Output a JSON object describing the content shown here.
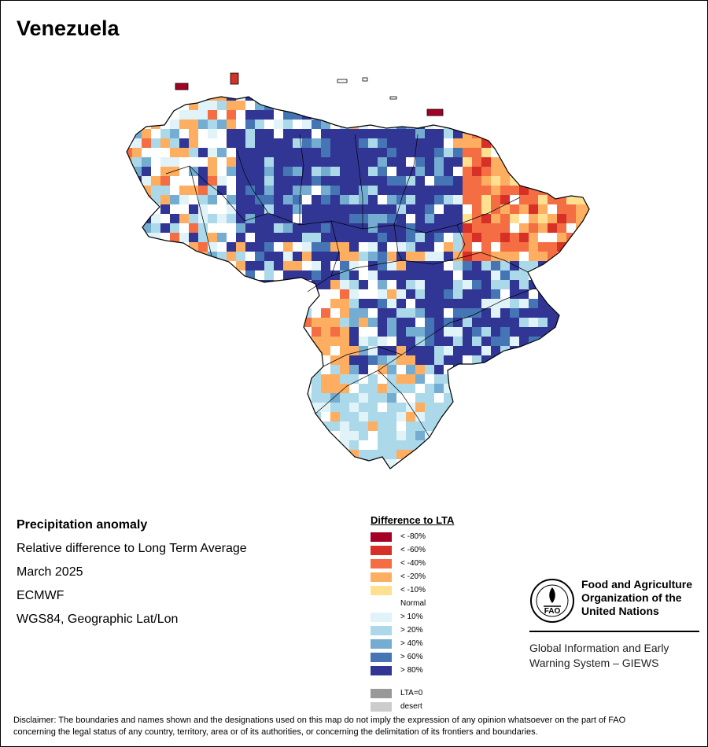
{
  "title": "Venezuela",
  "info": {
    "line1": "Precipitation anomaly",
    "line2": "Relative difference to Long Term Average",
    "line3": "March 2025",
    "line4": "ECMWF",
    "line5": "WGS84, Geographic Lat/Lon"
  },
  "legend": {
    "title": "Difference to LTA",
    "items": [
      {
        "label": "< -80%",
        "color": "#a50026"
      },
      {
        "label": "< -60%",
        "color": "#d73027"
      },
      {
        "label": "< -40%",
        "color": "#f46d43"
      },
      {
        "label": "< -20%",
        "color": "#fdae61"
      },
      {
        "label": "< -10%",
        "color": "#fee090"
      },
      {
        "label": "Normal",
        "color": "#ffffff"
      },
      {
        "label": "> 10%",
        "color": "#e0f3f8"
      },
      {
        "label": "> 20%",
        "color": "#abd9e9"
      },
      {
        "label": "> 40%",
        "color": "#74add1"
      },
      {
        "label": "> 60%",
        "color": "#4575b4"
      },
      {
        "label": "> 80%",
        "color": "#313695"
      }
    ],
    "extra": [
      {
        "label": "LTA=0",
        "color": "#999999"
      },
      {
        "label": "desert",
        "color": "#cccccc"
      }
    ]
  },
  "fao": {
    "logo_text": "FAO",
    "name_line1": "Food and Agriculture",
    "name_line2": "Organization of the",
    "name_line3": "United Nations",
    "giews_line1": "Global Information and Early",
    "giews_line2": "Warning System – GIEWS"
  },
  "disclaimer_line1": "Disclaimer: The boundaries and names shown and the designations used on this map do not imply the expression of any opinion whatsoever on the part of FAO",
  "disclaimer_line2": "concerning the legal status of any country, territory, area or of its authorities, or concerning the delimitation of its frontiers and boundaries."
}
